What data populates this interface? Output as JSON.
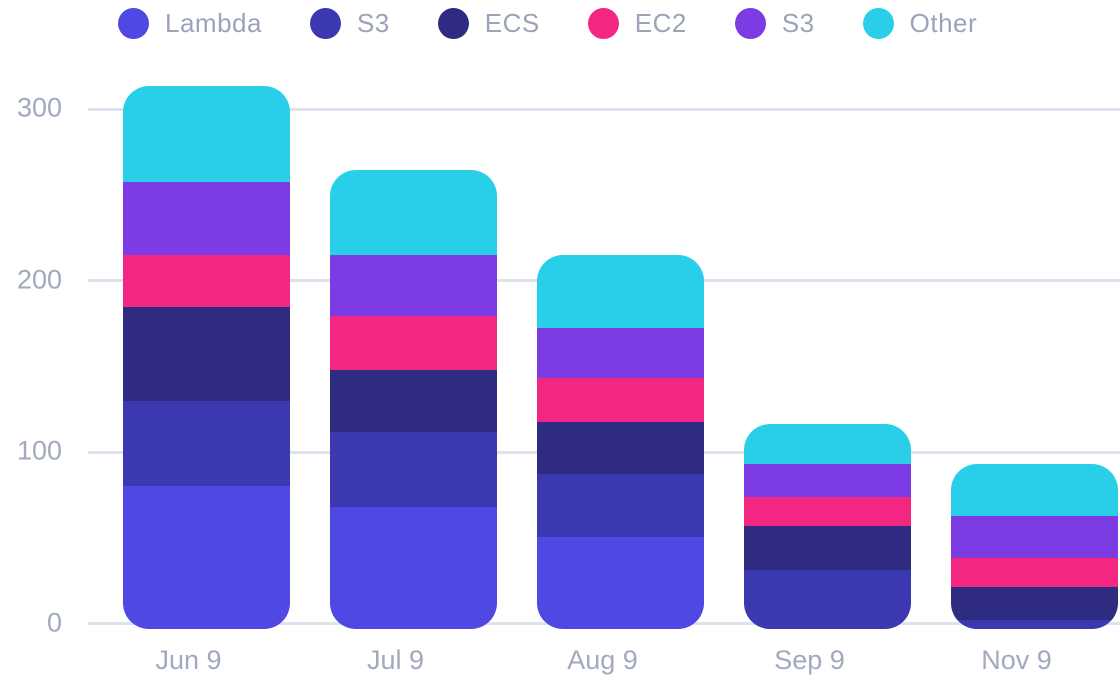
{
  "chart_data": {
    "type": "bar",
    "stacked": true,
    "title": "",
    "categories": [
      "Jun 9",
      "Jul 9",
      "Aug 9",
      "Sep 9",
      "Nov 9"
    ],
    "series": [
      {
        "name": "Lambda",
        "color": "#4F48E2",
        "values": [
          82,
          70,
          53,
          0,
          0
        ]
      },
      {
        "name": "S3",
        "color": "#3C38B0",
        "values": [
          49,
          43,
          36,
          34,
          5
        ]
      },
      {
        "name": "ECS",
        "color": "#2F2B80",
        "values": [
          54,
          36,
          30,
          25,
          19
        ]
      },
      {
        "name": "EC2",
        "color": "#F32682",
        "values": [
          30,
          31,
          25,
          17,
          17
        ]
      },
      {
        "name": "S3",
        "color": "#7D3BE4",
        "values": [
          42,
          35,
          29,
          19,
          24
        ]
      },
      {
        "name": "Other",
        "color": "#29CFE8",
        "values": [
          55,
          49,
          42,
          23,
          30
        ]
      }
    ],
    "totals": [
      312,
      264,
      215,
      118,
      95
    ],
    "ylim": [
      0,
      300
    ],
    "yticks": [
      300,
      200,
      100,
      0
    ],
    "grid": true,
    "legend_position": "top",
    "grid_color": "#DFE2EC",
    "axis_text_color": "#A2A9BF",
    "legend_text_color": "#9CA3B8",
    "background_color": "#FFFFFF"
  }
}
